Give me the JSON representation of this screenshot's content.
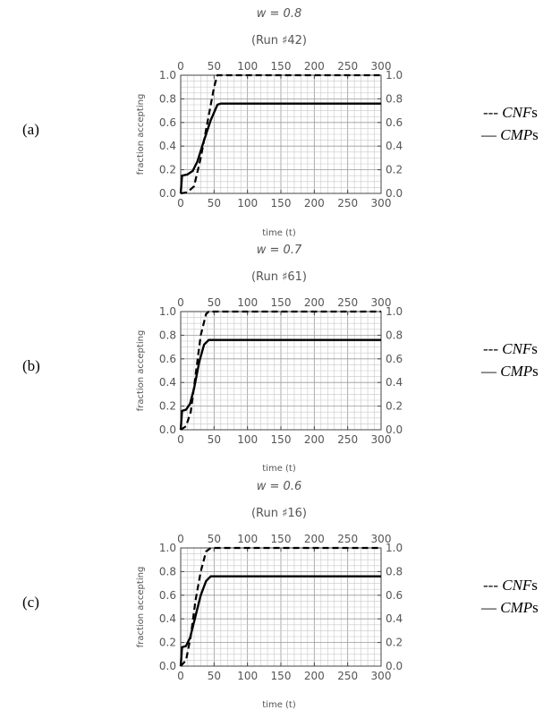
{
  "chart_data": [
    {
      "type": "line",
      "panel_label": "(a)",
      "title": "w = 0.8",
      "subtitle": "(Run ♯42)",
      "xlabel": "time (t)",
      "ylabel": "fraction accepting",
      "xlim": [
        0,
        300
      ],
      "ylim": [
        0,
        1.0
      ],
      "x_ticks": [
        "0",
        "50",
        "100",
        "150",
        "200",
        "250",
        "300"
      ],
      "y_ticks": [
        "0.0",
        "0.2",
        "0.4",
        "0.6",
        "0.8",
        "1.0"
      ],
      "grid": true,
      "legend": [
        {
          "marker": "---",
          "name": "CNF",
          "suffix": "s"
        },
        {
          "marker": "—",
          "name": "CMP",
          "suffix": "s"
        }
      ],
      "series": [
        {
          "name": "CNFs",
          "style": "dashed",
          "points": [
            [
              0,
              0
            ],
            [
              10,
              0.01
            ],
            [
              20,
              0.06
            ],
            [
              30,
              0.3
            ],
            [
              40,
              0.6
            ],
            [
              50,
              0.9
            ],
            [
              55,
              1.0
            ],
            [
              300,
              1.0
            ]
          ]
        },
        {
          "name": "CMPs",
          "style": "solid",
          "points": [
            [
              0,
              0
            ],
            [
              2,
              0.15
            ],
            [
              10,
              0.16
            ],
            [
              18,
              0.19
            ],
            [
              25,
              0.27
            ],
            [
              35,
              0.45
            ],
            [
              45,
              0.62
            ],
            [
              55,
              0.75
            ],
            [
              60,
              0.76
            ],
            [
              300,
              0.76
            ]
          ]
        }
      ]
    },
    {
      "type": "line",
      "panel_label": "(b)",
      "title": "w = 0.7",
      "subtitle": "(Run ♯61)",
      "xlabel": "time (t)",
      "ylabel": "fraction accepting",
      "xlim": [
        0,
        300
      ],
      "ylim": [
        0,
        1.0
      ],
      "x_ticks": [
        "0",
        "50",
        "100",
        "150",
        "200",
        "250",
        "300"
      ],
      "y_ticks": [
        "0.0",
        "0.2",
        "0.4",
        "0.6",
        "0.8",
        "1.0"
      ],
      "grid": true,
      "legend": [
        {
          "marker": "---",
          "name": "CNF",
          "suffix": "s"
        },
        {
          "marker": "—",
          "name": "CMP",
          "suffix": "s"
        }
      ],
      "series": [
        {
          "name": "CNFs",
          "style": "dashed",
          "points": [
            [
              0,
              0
            ],
            [
              8,
              0.03
            ],
            [
              15,
              0.15
            ],
            [
              22,
              0.45
            ],
            [
              30,
              0.8
            ],
            [
              38,
              0.98
            ],
            [
              42,
              1.0
            ],
            [
              300,
              1.0
            ]
          ]
        },
        {
          "name": "CMPs",
          "style": "solid",
          "points": [
            [
              0,
              0
            ],
            [
              2,
              0.16
            ],
            [
              8,
              0.17
            ],
            [
              14,
              0.22
            ],
            [
              20,
              0.35
            ],
            [
              28,
              0.58
            ],
            [
              35,
              0.72
            ],
            [
              42,
              0.76
            ],
            [
              300,
              0.76
            ]
          ]
        }
      ]
    },
    {
      "type": "line",
      "panel_label": "(c)",
      "title": "w = 0.6",
      "subtitle": "(Run ♯16)",
      "xlabel": "time (t)",
      "ylabel": "fraction accepting",
      "xlim": [
        0,
        300
      ],
      "ylim": [
        0,
        1.0
      ],
      "x_ticks": [
        "0",
        "50",
        "100",
        "150",
        "200",
        "250",
        "300"
      ],
      "y_ticks": [
        "0.0",
        "0.2",
        "0.4",
        "0.6",
        "0.8",
        "1.0"
      ],
      "grid": true,
      "legend": [
        {
          "marker": "---",
          "name": "CNF",
          "suffix": "s"
        },
        {
          "marker": "—",
          "name": "CMP",
          "suffix": "s"
        }
      ],
      "series": [
        {
          "name": "CNFs",
          "style": "dashed",
          "points": [
            [
              0,
              0
            ],
            [
              8,
              0.05
            ],
            [
              15,
              0.25
            ],
            [
              22,
              0.55
            ],
            [
              30,
              0.8
            ],
            [
              38,
              0.97
            ],
            [
              45,
              1.0
            ],
            [
              300,
              1.0
            ]
          ]
        },
        {
          "name": "CMPs",
          "style": "solid",
          "points": [
            [
              0,
              0
            ],
            [
              2,
              0.16
            ],
            [
              8,
              0.17
            ],
            [
              14,
              0.24
            ],
            [
              22,
              0.42
            ],
            [
              30,
              0.6
            ],
            [
              38,
              0.72
            ],
            [
              45,
              0.76
            ],
            [
              300,
              0.76
            ]
          ]
        }
      ]
    }
  ]
}
